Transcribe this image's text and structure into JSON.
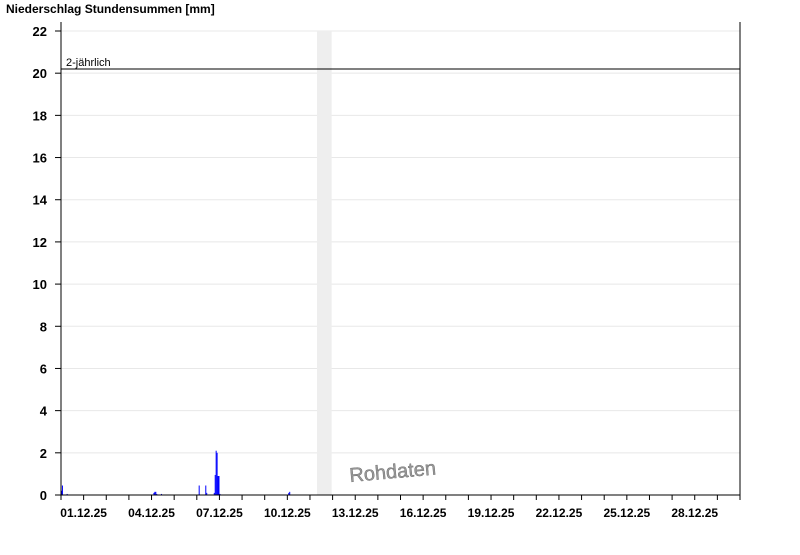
{
  "chart_data": {
    "type": "bar",
    "title": "Niederschlag Stundensummen [mm]",
    "xlabel": "",
    "ylabel": "",
    "x_start": "30.11.25 00:00",
    "x_end": "30.12.25 00:00",
    "ylim": [
      0,
      22
    ],
    "yticks": [
      0,
      2,
      4,
      6,
      8,
      10,
      12,
      14,
      16,
      18,
      20,
      22
    ],
    "xtick_labels": [
      "01.12.25",
      "04.12.25",
      "07.12.25",
      "10.12.25",
      "13.12.25",
      "16.12.25",
      "19.12.25",
      "22.12.25",
      "25.12.25",
      "28.12.25"
    ],
    "grid": true,
    "bar_color": "#0000ff",
    "threshold": {
      "label": "2-jährlich",
      "value": 20.2
    },
    "gap_band": {
      "start": "11.12.25 07:30",
      "end": "11.12.25 23:00",
      "color": "#eeeeee"
    },
    "watermark": "Rohdaten",
    "points": [
      [
        "30.11.25 00:00",
        0.2
      ],
      [
        "30.11.25 01:00",
        0.45
      ],
      [
        "30.11.25 06:00",
        0.05
      ],
      [
        "04.12.25 02:00",
        0.1
      ],
      [
        "04.12.25 03:00",
        0.15
      ],
      [
        "04.12.25 04:00",
        0.15
      ],
      [
        "04.12.25 05:00",
        0.05
      ],
      [
        "04.12.25 10:00",
        0.05
      ],
      [
        "06.12.25 02:00",
        0.45
      ],
      [
        "06.12.25 09:00",
        0.45
      ],
      [
        "06.12.25 10:00",
        0.1
      ],
      [
        "06.12.25 18:00",
        0.1
      ],
      [
        "06.12.25 19:00",
        0.95
      ],
      [
        "06.12.25 20:00",
        2.1
      ],
      [
        "06.12.25 21:00",
        2.0
      ],
      [
        "06.12.25 22:00",
        0.9
      ],
      [
        "06.12.25 23:00",
        0.9
      ],
      [
        "07.12.25 00:00",
        0.05
      ],
      [
        "10.12.25 01:00",
        0.1
      ],
      [
        "10.12.25 02:00",
        0.15
      ]
    ]
  }
}
